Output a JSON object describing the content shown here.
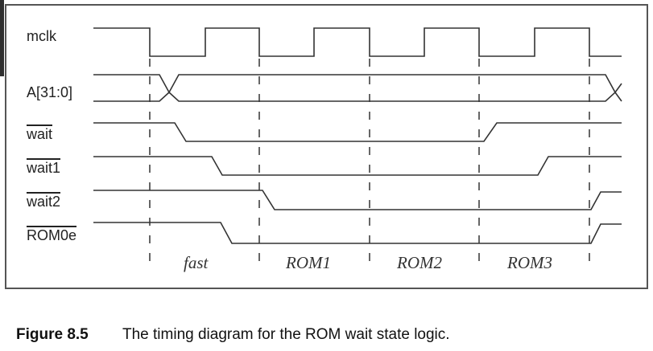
{
  "diagram": {
    "signals": [
      {
        "name": "mclk",
        "overbar": false
      },
      {
        "name": "A[31:0]",
        "overbar": false
      },
      {
        "name": "wait",
        "overbar": true
      },
      {
        "name": "wait1",
        "overbar": true
      },
      {
        "name": "wait2",
        "overbar": true
      },
      {
        "name": "ROM0e",
        "overbar": true
      }
    ],
    "phases": [
      "fast",
      "ROM1",
      "ROM2",
      "ROM3"
    ]
  },
  "caption": {
    "number": "Figure 8.5",
    "text": "The timing diagram for the ROM wait state logic."
  }
}
